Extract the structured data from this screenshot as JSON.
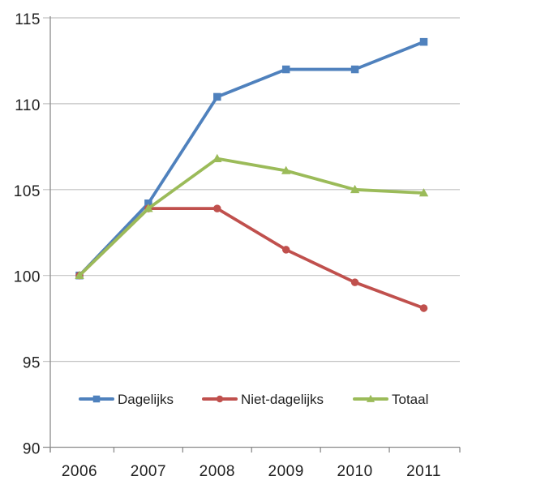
{
  "chart_data": {
    "type": "line",
    "title": "",
    "xlabel": "",
    "ylabel": "",
    "categories": [
      "2006",
      "2007",
      "2008",
      "2009",
      "2010",
      "2011"
    ],
    "series": [
      {
        "name": "Dagelijks",
        "color": "#4F81BD",
        "marker": "square",
        "values": [
          100,
          104.2,
          110.4,
          112.0,
          112.0,
          113.6
        ]
      },
      {
        "name": "Niet-dagelijks",
        "color": "#C0504D",
        "marker": "circle",
        "values": [
          100,
          103.9,
          103.9,
          101.5,
          99.6,
          98.1
        ]
      },
      {
        "name": "Totaal",
        "color": "#9BBB59",
        "marker": "triangle",
        "values": [
          100,
          103.9,
          106.8,
          106.1,
          105.0,
          104.8
        ]
      }
    ],
    "ylim": [
      90,
      115
    ],
    "yticks": [
      90,
      95,
      100,
      105,
      110,
      115
    ],
    "grid": "horizontal-only",
    "legend_position": "bottom-inside",
    "colors": {
      "gridline": "#C2C2C2",
      "axis": "#8C8C8C",
      "text": "#1F1F1F",
      "background": "#FFFFFF"
    }
  }
}
